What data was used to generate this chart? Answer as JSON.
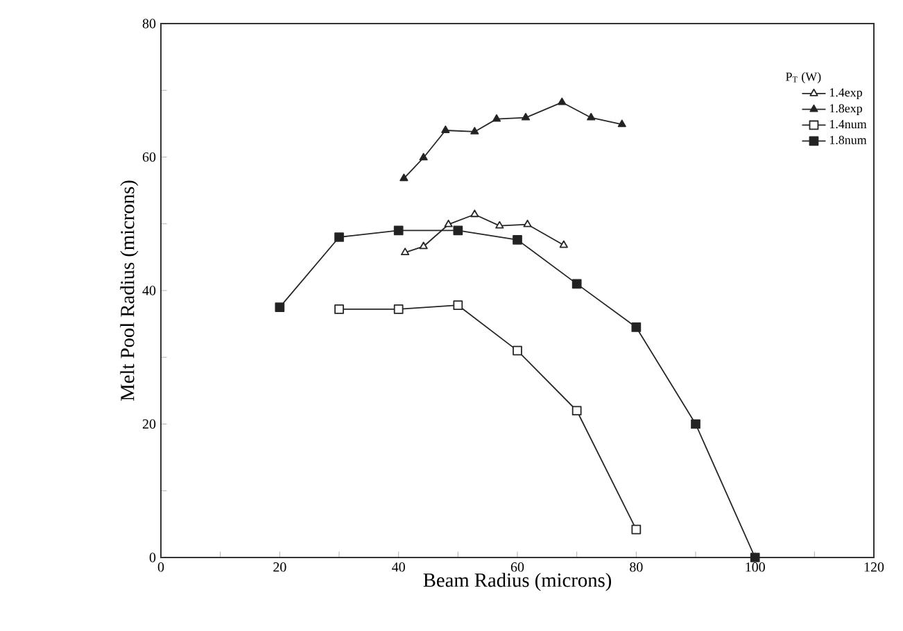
{
  "chart_data": {
    "type": "line",
    "xlabel": "Beam Radius (microns)",
    "ylabel": "Melt Pool Radius (microns)",
    "legend_title": "P$_{T}$ (W)",
    "legend": "top right",
    "grid": false,
    "line_style": "solid",
    "xlim": [
      0,
      120
    ],
    "ylim": [
      0,
      80
    ],
    "xticks": [
      0,
      {
        "value": 10,
        "label": null
      },
      20,
      {
        "value": 30,
        "label": null
      },
      40,
      {
        "value": 50,
        "label": null
      },
      60,
      {
        "value": 70,
        "label": null
      },
      80,
      {
        "value": 90,
        "label": null
      },
      100,
      {
        "value": 110,
        "label": null
      },
      120
    ],
    "yticks": [
      0,
      {
        "value": 10,
        "label": null
      },
      20,
      {
        "value": 30,
        "label": null
      },
      40,
      {
        "value": 50,
        "label": null
      },
      60,
      {
        "value": 70,
        "label": null
      },
      80
    ],
    "series": [
      {
        "name": "1.4exp",
        "color": "#ffffff",
        "marker": "triangle",
        "x": [
          41.1,
          44.2,
          48.4,
          52.8,
          57.0,
          61.7,
          67.8
        ],
        "values": [
          45.7,
          46.6,
          49.9,
          51.4,
          49.7,
          49.9,
          46.8
        ]
      },
      {
        "name": "1.8exp",
        "color": "#222222",
        "marker": "triangle",
        "x": [
          40.9,
          44.2,
          47.9,
          52.8,
          56.5,
          61.4,
          67.5,
          72.4,
          77.6
        ],
        "values": [
          56.8,
          59.9,
          64.0,
          63.8,
          65.7,
          65.9,
          68.2,
          65.9,
          64.9
        ]
      },
      {
        "name": "1.4num",
        "color": "#ffffff",
        "marker": "square",
        "x": [
          30,
          40,
          50,
          60,
          70,
          80
        ],
        "values": [
          37.2,
          37.2,
          37.8,
          31.0,
          22.0,
          4.2
        ]
      },
      {
        "name": "1.8num",
        "color": "#222222",
        "marker": "square",
        "x": [
          20,
          30,
          40,
          50,
          60,
          70,
          80,
          90,
          100
        ],
        "values": [
          37.5,
          48,
          49,
          49,
          47.6,
          41,
          34.5,
          20,
          0
        ]
      }
    ]
  }
}
